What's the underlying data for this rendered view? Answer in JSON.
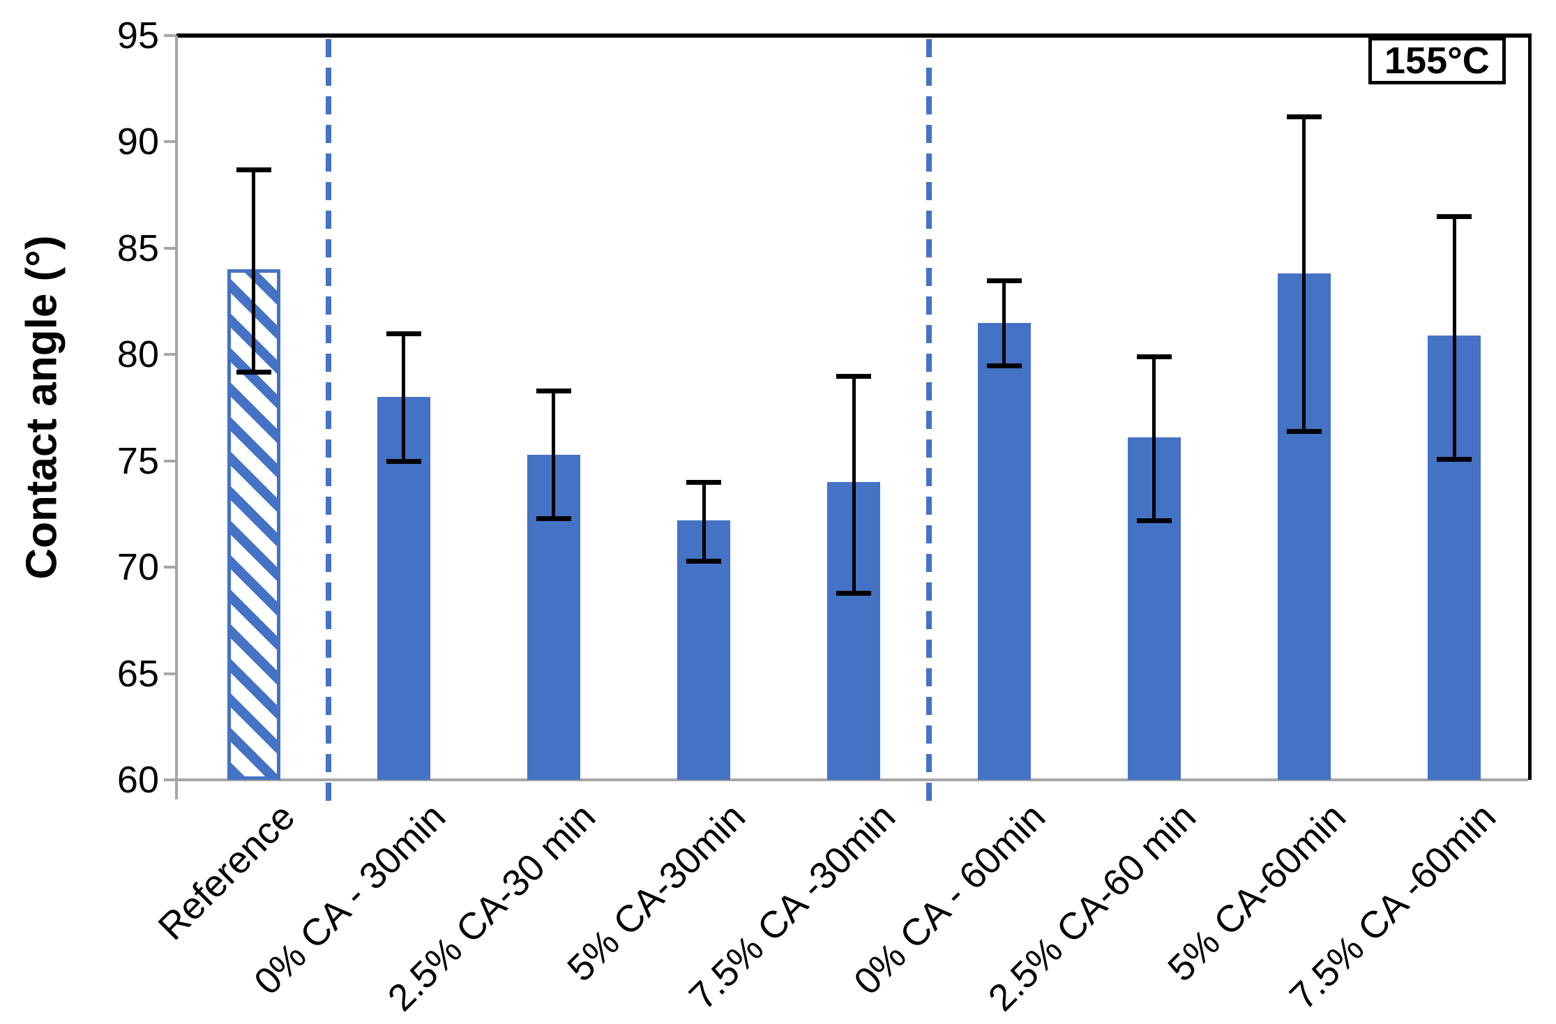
{
  "chart_data": {
    "type": "bar",
    "title": "",
    "xlabel": "",
    "ylabel": "Contact angle (°)",
    "annotation": "155°C",
    "ylim": [
      60,
      95
    ],
    "y_tick_step": 5,
    "y_ticks": [
      95,
      90,
      85,
      80,
      75,
      70,
      65,
      60
    ],
    "grid": false,
    "legend": null,
    "categories": [
      "Reference",
      "0% CA - 30min",
      "2.5% CA-30 min",
      "5% CA-30min",
      "7.5% CA -30min",
      "0% CA - 60min",
      "2.5% CA-60 min",
      "5% CA-60min",
      "7.5% CA -60min"
    ],
    "series": [
      {
        "name": "Contact angle",
        "values": [
          84.0,
          78.0,
          75.3,
          72.2,
          74.0,
          81.5,
          76.1,
          83.8,
          80.9
        ],
        "error_low": [
          79.2,
          75.0,
          72.3,
          70.3,
          68.8,
          79.5,
          72.2,
          76.4,
          75.1
        ],
        "error_high": [
          88.7,
          81.0,
          78.3,
          74.0,
          79.0,
          83.5,
          79.9,
          91.2,
          86.5
        ]
      }
    ],
    "bar_styles": [
      "hatched",
      "solid",
      "solid",
      "solid",
      "solid",
      "solid",
      "solid",
      "solid",
      "solid"
    ],
    "separators_after_category_index": [
      0,
      4
    ],
    "colors": {
      "bar_fill": "#4472C4",
      "hatch_stripe": "#4472C4",
      "dashed_line": "#4472C4",
      "axis_line": "#A6A6A6",
      "frame_line": "#000000",
      "error_bar": "#000000",
      "text": "#000000"
    }
  }
}
